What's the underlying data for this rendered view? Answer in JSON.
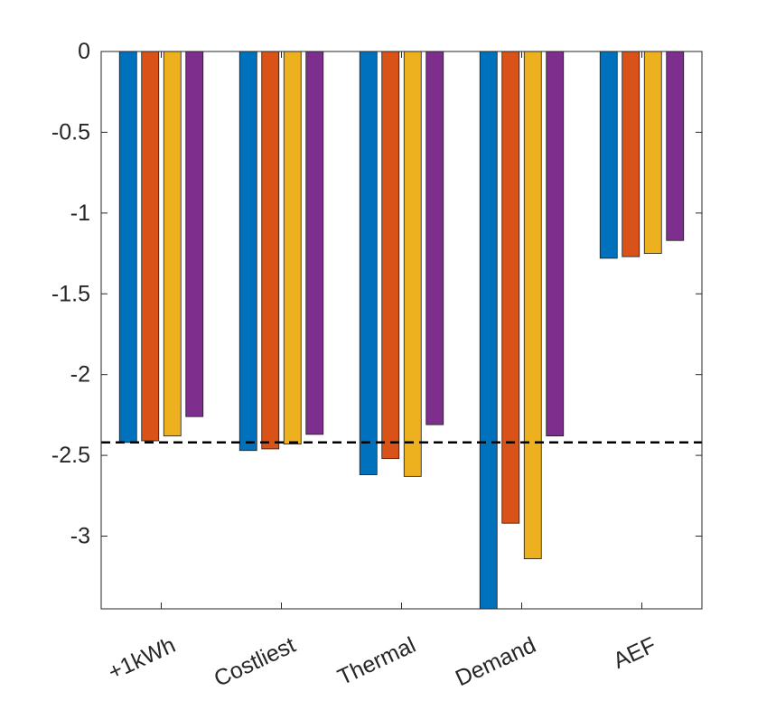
{
  "chart_data": {
    "type": "bar",
    "categories": [
      "+1kWh",
      "Costliest",
      "Thermal",
      "Demand",
      "AEF"
    ],
    "series": [
      {
        "color": "#0072BD",
        "values": [
          -2.42,
          -2.47,
          -2.62,
          -3.45,
          -1.28
        ]
      },
      {
        "color": "#D95319",
        "values": [
          -2.41,
          -2.46,
          -2.52,
          -2.92,
          -1.27
        ]
      },
      {
        "color": "#EDB120",
        "values": [
          -2.38,
          -2.43,
          -2.63,
          -3.14,
          -1.25
        ]
      },
      {
        "color": "#7E2F8E",
        "values": [
          -2.26,
          -2.37,
          -2.31,
          -2.38,
          -1.17
        ]
      }
    ],
    "reference_line": {
      "y": -2.42,
      "color": "#000000",
      "style": "dashed"
    },
    "ylim": [
      -3.45,
      0
    ],
    "yticks": [
      0,
      -0.5,
      -1,
      -1.5,
      -2,
      -2.5,
      -3
    ],
    "ytick_labels": [
      "0",
      "-0.5",
      "-1",
      "-1.5",
      "-2",
      "-2.5",
      "-3"
    ],
    "title": "",
    "xlabel": "",
    "ylabel": "",
    "grid": false,
    "legend": "none",
    "xtick_label_rotation_deg": -25
  }
}
